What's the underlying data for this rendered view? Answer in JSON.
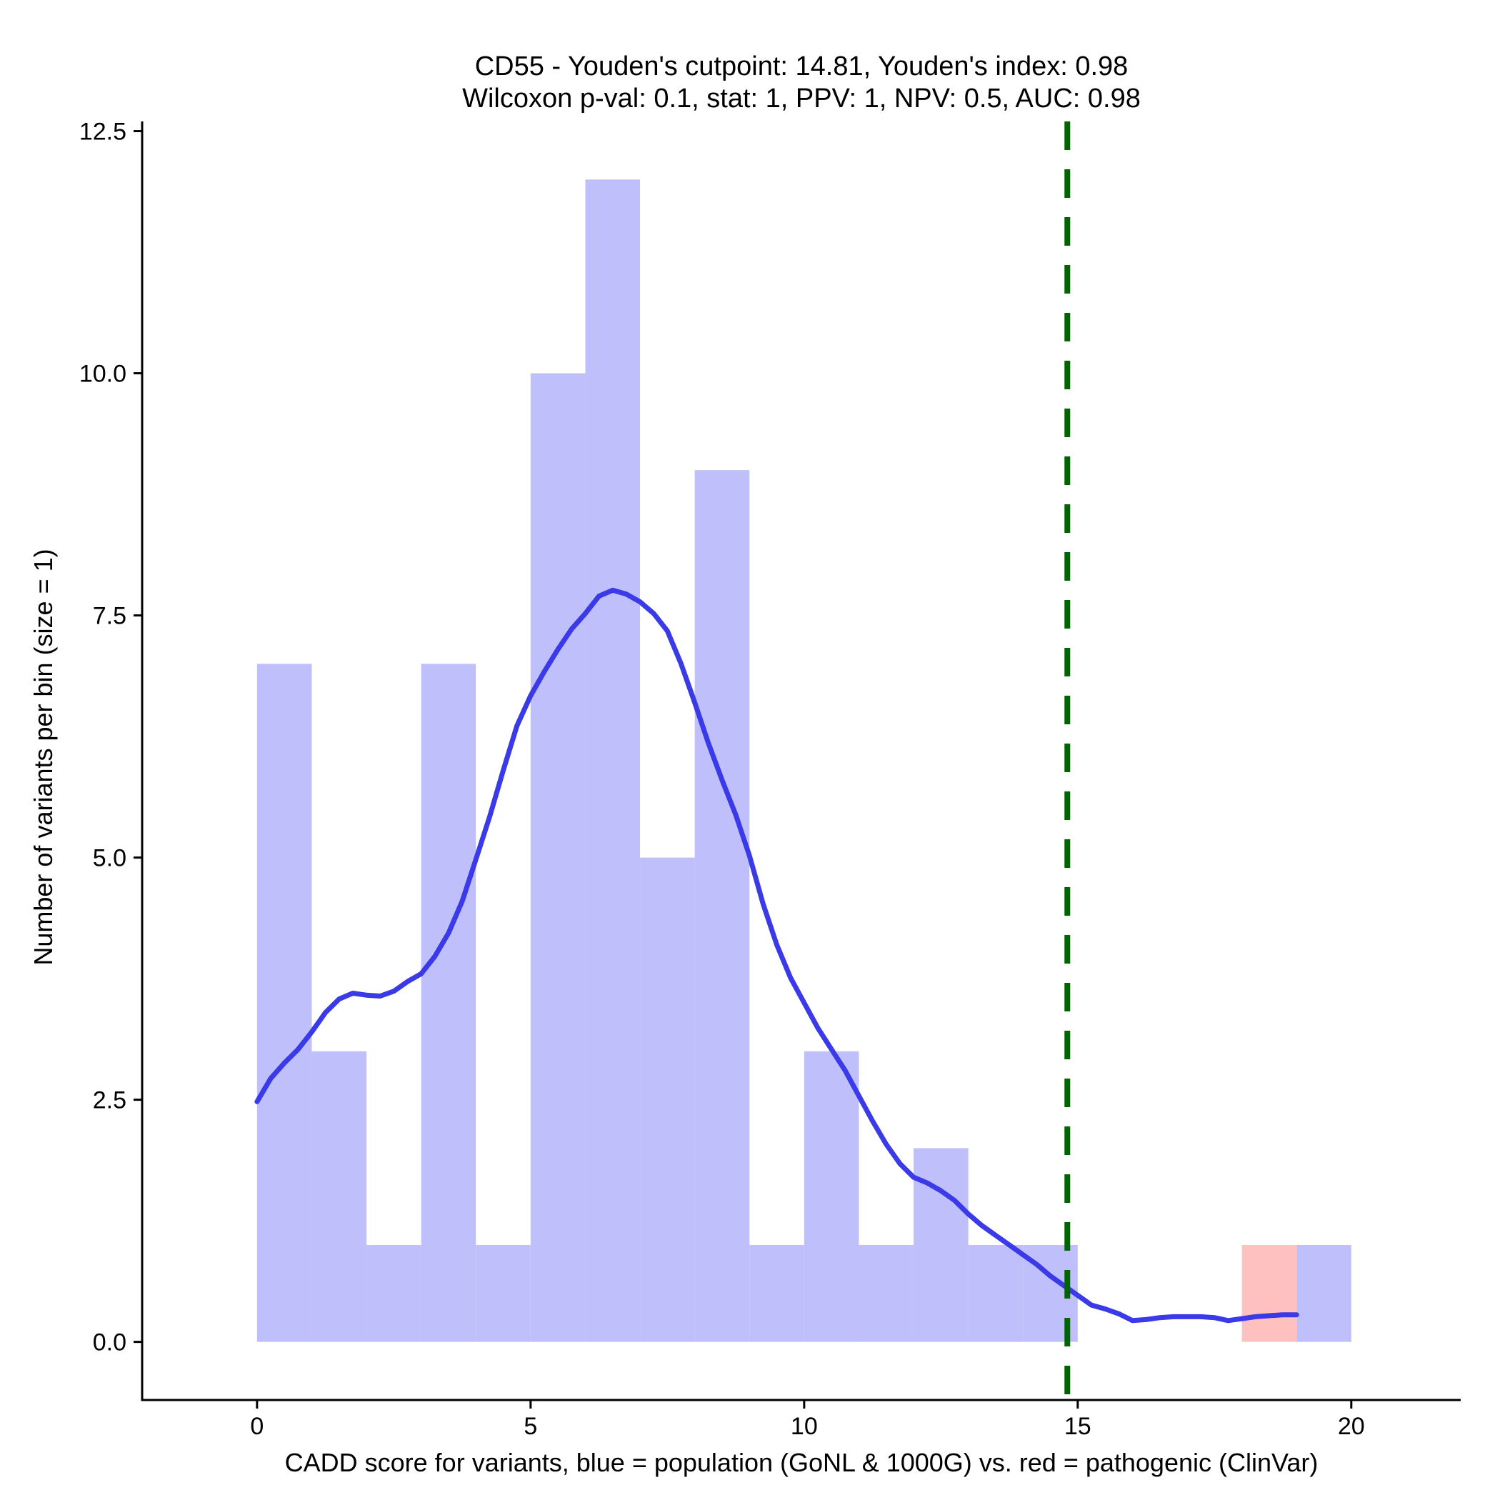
{
  "chart_data": {
    "type": "histogram",
    "title": "CD55 - Youden's cutpoint: 14.81, Youden's index: 0.98",
    "subtitle": "Wilcoxon p-val: 0.1, stat: 1, PPV: 1, NPV: 0.5, AUC: 0.98",
    "xlabel": "CADD score for variants, blue = population (GoNL & 1000G) vs. red = pathogenic (ClinVar)",
    "ylabel": "Number of variants per bin (size = 1)",
    "xlim": [
      -2.1,
      22
    ],
    "ylim": [
      -0.6,
      12.6
    ],
    "x_ticks": [
      0,
      5,
      10,
      15,
      20
    ],
    "x_tick_labels": [
      "0",
      "5",
      "10",
      "15",
      "20"
    ],
    "y_ticks": [
      0,
      2.5,
      5,
      7.5,
      10,
      12.5
    ],
    "y_tick_labels": [
      "0.0",
      "2.5",
      "5.0",
      "7.5",
      "10.0",
      "12.5"
    ],
    "bin_width": 1,
    "series": [
      {
        "name": "population (GoNL & 1000G)",
        "color": "#bfbffc",
        "bins": [
          {
            "x0": 0,
            "x1": 1,
            "count": 7
          },
          {
            "x0": 1,
            "x1": 2,
            "count": 3
          },
          {
            "x0": 2,
            "x1": 3,
            "count": 1
          },
          {
            "x0": 3,
            "x1": 4,
            "count": 7
          },
          {
            "x0": 4,
            "x1": 5,
            "count": 1
          },
          {
            "x0": 5,
            "x1": 6,
            "count": 10
          },
          {
            "x0": 6,
            "x1": 7,
            "count": 12
          },
          {
            "x0": 7,
            "x1": 8,
            "count": 5
          },
          {
            "x0": 8,
            "x1": 9,
            "count": 9
          },
          {
            "x0": 9,
            "x1": 10,
            "count": 1
          },
          {
            "x0": 10,
            "x1": 11,
            "count": 3
          },
          {
            "x0": 11,
            "x1": 12,
            "count": 1
          },
          {
            "x0": 12,
            "x1": 13,
            "count": 2
          },
          {
            "x0": 13,
            "x1": 14,
            "count": 1
          },
          {
            "x0": 14,
            "x1": 15,
            "count": 1
          },
          {
            "x0": 19,
            "x1": 20,
            "count": 1
          }
        ]
      },
      {
        "name": "pathogenic (ClinVar)",
        "color": "#ffc0c0",
        "bins": [
          {
            "x0": 18,
            "x1": 19,
            "count": 1
          }
        ]
      }
    ],
    "density_curve": {
      "name": "population density",
      "color": "#3a3ae8",
      "points": [
        [
          0,
          2.48
        ],
        [
          0.25,
          2.72
        ],
        [
          0.5,
          2.88
        ],
        [
          0.75,
          3.02
        ],
        [
          1.0,
          3.2
        ],
        [
          1.25,
          3.4
        ],
        [
          1.5,
          3.54
        ],
        [
          1.75,
          3.6
        ],
        [
          2.0,
          3.58
        ],
        [
          2.25,
          3.57
        ],
        [
          2.5,
          3.62
        ],
        [
          2.75,
          3.72
        ],
        [
          3.0,
          3.8
        ],
        [
          3.25,
          3.98
        ],
        [
          3.5,
          4.22
        ],
        [
          3.75,
          4.55
        ],
        [
          4.0,
          4.98
        ],
        [
          4.25,
          5.42
        ],
        [
          4.5,
          5.9
        ],
        [
          4.75,
          6.36
        ],
        [
          5.0,
          6.67
        ],
        [
          5.25,
          6.92
        ],
        [
          5.5,
          7.15
        ],
        [
          5.75,
          7.36
        ],
        [
          6.0,
          7.52
        ],
        [
          6.25,
          7.7
        ],
        [
          6.5,
          7.76
        ],
        [
          6.75,
          7.72
        ],
        [
          7.0,
          7.64
        ],
        [
          7.25,
          7.52
        ],
        [
          7.5,
          7.34
        ],
        [
          7.75,
          7.0
        ],
        [
          8.0,
          6.6
        ],
        [
          8.25,
          6.18
        ],
        [
          8.5,
          5.8
        ],
        [
          8.75,
          5.44
        ],
        [
          9.0,
          5.02
        ],
        [
          9.25,
          4.52
        ],
        [
          9.5,
          4.1
        ],
        [
          9.75,
          3.76
        ],
        [
          10.0,
          3.5
        ],
        [
          10.25,
          3.24
        ],
        [
          10.5,
          3.02
        ],
        [
          10.75,
          2.8
        ],
        [
          11.0,
          2.54
        ],
        [
          11.25,
          2.28
        ],
        [
          11.5,
          2.04
        ],
        [
          11.75,
          1.84
        ],
        [
          12.0,
          1.7
        ],
        [
          12.25,
          1.64
        ],
        [
          12.5,
          1.56
        ],
        [
          12.75,
          1.46
        ],
        [
          13.0,
          1.32
        ],
        [
          13.25,
          1.2
        ],
        [
          13.5,
          1.1
        ],
        [
          13.75,
          1.0
        ],
        [
          14.0,
          0.9
        ],
        [
          14.25,
          0.8
        ],
        [
          14.5,
          0.68
        ],
        [
          14.75,
          0.58
        ],
        [
          15.0,
          0.48
        ],
        [
          15.25,
          0.38
        ],
        [
          15.5,
          0.34
        ],
        [
          15.75,
          0.29
        ],
        [
          16.0,
          0.22
        ],
        [
          16.25,
          0.23
        ],
        [
          16.5,
          0.25
        ],
        [
          16.75,
          0.26
        ],
        [
          17.0,
          0.26
        ],
        [
          17.25,
          0.26
        ],
        [
          17.5,
          0.25
        ],
        [
          17.75,
          0.22
        ],
        [
          18.0,
          0.24
        ],
        [
          18.25,
          0.26
        ],
        [
          18.5,
          0.27
        ],
        [
          18.75,
          0.28
        ],
        [
          19.0,
          0.28
        ]
      ]
    },
    "cutpoint": {
      "x": 14.81,
      "color": "#006400",
      "style": "dashed",
      "label": "Youden's cutpoint"
    }
  }
}
